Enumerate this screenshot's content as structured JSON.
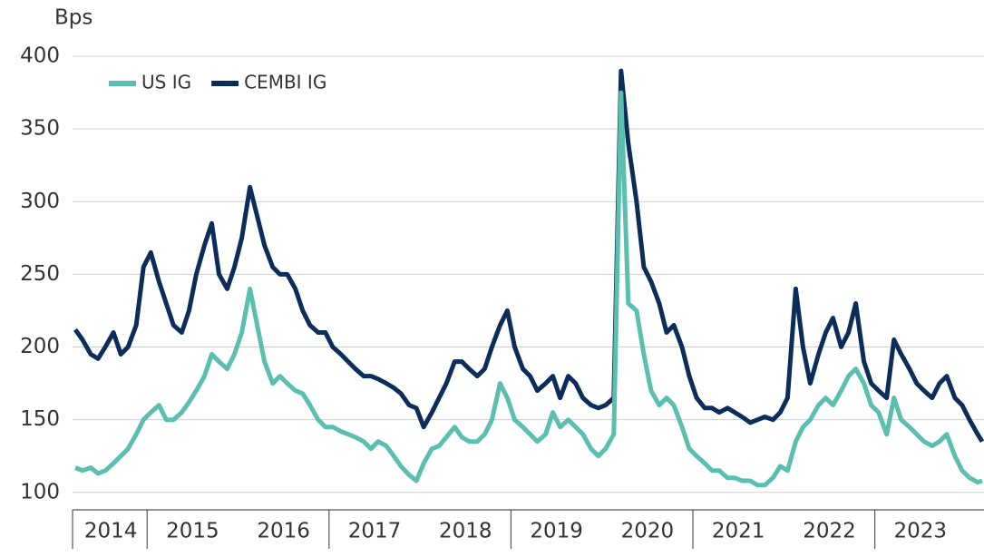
{
  "chart_data": {
    "type": "line",
    "y_label": "Bps",
    "xlim": [
      2014.18,
      2024.2
    ],
    "xticks": [
      {
        "value": 2014.6,
        "label": "2014"
      },
      {
        "value": 2015.5,
        "label": "2015"
      },
      {
        "value": 2016.5,
        "label": "2016"
      },
      {
        "value": 2017.5,
        "label": "2017"
      },
      {
        "value": 2018.5,
        "label": "2018"
      },
      {
        "value": 2019.5,
        "label": "2019"
      },
      {
        "value": 2020.5,
        "label": "2020"
      },
      {
        "value": 2021.5,
        "label": "2021"
      },
      {
        "value": 2022.5,
        "label": "2022"
      },
      {
        "value": 2023.5,
        "label": "2023"
      }
    ],
    "xtick_marks": [
      2015,
      2017,
      2019,
      2021,
      2023
    ],
    "ylim": [
      88,
      430
    ],
    "yticks": [
      100,
      150,
      200,
      250,
      300,
      350,
      400
    ],
    "grid": true,
    "legend": "top-left",
    "x": [
      2014.21,
      2014.29,
      2014.38,
      2014.46,
      2014.54,
      2014.63,
      2014.71,
      2014.79,
      2014.88,
      2014.96,
      2015.04,
      2015.13,
      2015.21,
      2015.29,
      2015.38,
      2015.46,
      2015.54,
      2015.63,
      2015.71,
      2015.79,
      2015.88,
      2015.96,
      2016.04,
      2016.13,
      2016.21,
      2016.29,
      2016.38,
      2016.46,
      2016.54,
      2016.63,
      2016.71,
      2016.79,
      2016.88,
      2016.96,
      2017.04,
      2017.13,
      2017.21,
      2017.29,
      2017.38,
      2017.46,
      2017.54,
      2017.63,
      2017.71,
      2017.79,
      2017.88,
      2017.96,
      2018.04,
      2018.13,
      2018.21,
      2018.29,
      2018.38,
      2018.46,
      2018.54,
      2018.63,
      2018.71,
      2018.79,
      2018.88,
      2018.96,
      2019.04,
      2019.13,
      2019.21,
      2019.29,
      2019.38,
      2019.46,
      2019.54,
      2019.63,
      2019.71,
      2019.79,
      2019.88,
      2019.96,
      2020.04,
      2020.13,
      2020.21,
      2020.29,
      2020.38,
      2020.46,
      2020.54,
      2020.63,
      2020.71,
      2020.79,
      2020.88,
      2020.96,
      2021.04,
      2021.13,
      2021.21,
      2021.29,
      2021.38,
      2021.46,
      2021.54,
      2021.63,
      2021.71,
      2021.79,
      2021.88,
      2021.96,
      2022.04,
      2022.13,
      2022.21,
      2022.29,
      2022.38,
      2022.46,
      2022.54,
      2022.63,
      2022.71,
      2022.79,
      2022.88,
      2022.96,
      2023.04,
      2023.13,
      2023.21,
      2023.29,
      2023.38,
      2023.46,
      2023.54,
      2023.63,
      2023.71,
      2023.79,
      2023.88,
      2023.96,
      2024.04,
      2024.13,
      2024.18
    ],
    "series": [
      {
        "name": "US IG",
        "color": "#5bbfb0",
        "values": [
          117,
          115,
          117,
          113,
          115,
          120,
          125,
          130,
          140,
          150,
          155,
          160,
          150,
          150,
          155,
          162,
          170,
          180,
          195,
          190,
          185,
          195,
          210,
          240,
          215,
          190,
          175,
          180,
          175,
          170,
          168,
          160,
          150,
          145,
          145,
          142,
          140,
          138,
          135,
          130,
          135,
          132,
          125,
          118,
          112,
          108,
          120,
          130,
          132,
          138,
          145,
          138,
          135,
          135,
          140,
          150,
          175,
          165,
          150,
          145,
          140,
          135,
          140,
          155,
          145,
          150,
          145,
          140,
          130,
          125,
          130,
          140,
          375,
          230,
          225,
          195,
          170,
          160,
          165,
          160,
          145,
          130,
          125,
          120,
          115,
          115,
          110,
          110,
          108,
          108,
          105,
          105,
          110,
          118,
          115,
          135,
          145,
          150,
          160,
          165,
          160,
          170,
          180,
          185,
          175,
          160,
          155,
          140,
          165,
          150,
          145,
          140,
          135,
          132,
          135,
          140,
          125,
          115,
          110,
          107,
          108
        ]
      },
      {
        "name": "CEMBI IG",
        "color": "#0c2c5a",
        "values": [
          212,
          205,
          195,
          192,
          200,
          210,
          195,
          200,
          215,
          255,
          265,
          245,
          230,
          215,
          210,
          225,
          250,
          270,
          285,
          250,
          240,
          255,
          275,
          310,
          290,
          270,
          255,
          250,
          250,
          240,
          225,
          215,
          210,
          210,
          200,
          195,
          190,
          185,
          180,
          180,
          178,
          175,
          172,
          168,
          160,
          158,
          145,
          155,
          165,
          175,
          190,
          190,
          185,
          180,
          185,
          200,
          215,
          225,
          200,
          185,
          180,
          170,
          175,
          180,
          165,
          180,
          175,
          165,
          160,
          158,
          160,
          165,
          390,
          340,
          300,
          255,
          245,
          230,
          210,
          215,
          200,
          180,
          165,
          158,
          158,
          155,
          158,
          155,
          152,
          148,
          150,
          152,
          150,
          155,
          165,
          240,
          200,
          175,
          195,
          210,
          220,
          200,
          210,
          230,
          190,
          175,
          170,
          165,
          205,
          195,
          185,
          175,
          170,
          165,
          175,
          180,
          165,
          160,
          150,
          140,
          135
        ]
      }
    ]
  }
}
